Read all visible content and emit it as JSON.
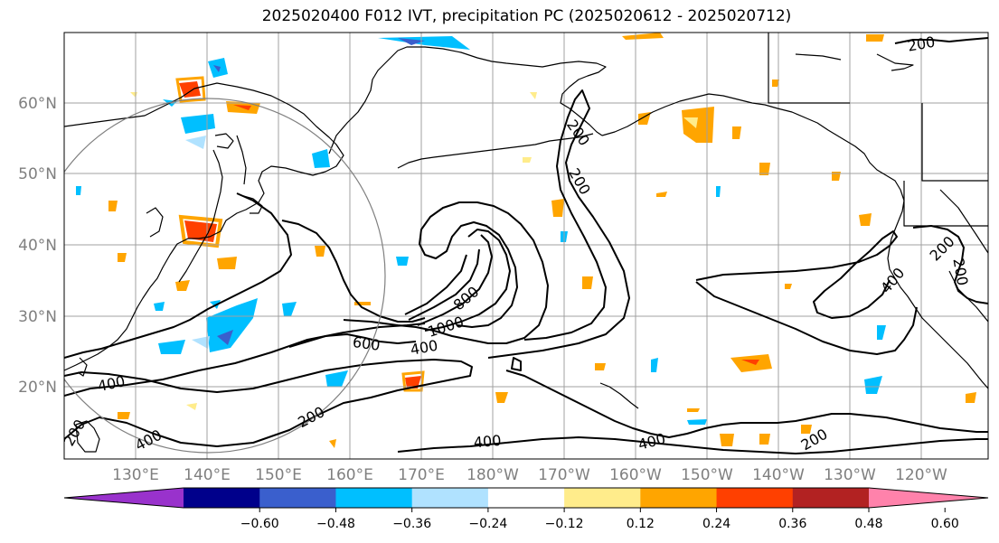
{
  "title": "2025020400 F012 IVT, precipitation PC (2025020612 - 2025020712)",
  "latitude_labels": [
    "60°N",
    "50°N",
    "40°N",
    "30°N",
    "20°N"
  ],
  "longitude_labels": [
    "130°E",
    "140°E",
    "150°E",
    "160°E",
    "170°E",
    "180°W",
    "170°W",
    "160°W",
    "150°W",
    "140°W",
    "130°W",
    "120°W"
  ],
  "contour_labels": [
    "200",
    "200",
    "200",
    "200",
    "400",
    "400",
    "400",
    "400",
    "400",
    "400",
    "600",
    "800",
    "1000",
    "200",
    "200",
    "200",
    "200"
  ],
  "colorbar": {
    "tick_labels": [
      "−0.60",
      "−0.48",
      "−0.36",
      "−0.24",
      "−0.12",
      "0.12",
      "0.24",
      "0.36",
      "0.48",
      "0.60"
    ],
    "colors": [
      "#9932cc",
      "#00008b",
      "#3a5fcd",
      "#00bfff",
      "#b0e2ff",
      "#ffffff",
      "#ffec8b",
      "#ffa500",
      "#ff4000",
      "#b22222",
      "#ff82ab"
    ]
  },
  "colors": {
    "contour": "#000000",
    "coast": "#000000",
    "grid": "#a0a0a0",
    "circle": "#808080",
    "axis_label": "#7f7f7f"
  }
}
